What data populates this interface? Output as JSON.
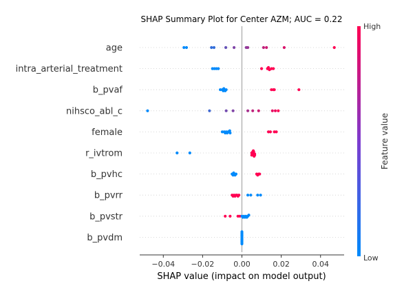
{
  "chart_data": {
    "type": "scatter",
    "title": "SHAP Summary Plot for Center AZM; AUC = 0.22",
    "xlabel": "SHAP value (impact on model output)",
    "xlim": [
      -0.052,
      0.052
    ],
    "xticks": [
      -0.04,
      -0.02,
      0.0,
      0.02,
      0.04
    ],
    "xtick_labels": [
      "−0.04",
      "−0.02",
      "0.00",
      "0.02",
      "0.04"
    ],
    "colorbar": {
      "title": "Feature value",
      "high_label": "High",
      "low_label": "Low",
      "low_color": "#008afb",
      "high_color": "#ff0052"
    },
    "colors": {
      "zero_line": "#999999",
      "grid": "#cccccc",
      "axis": "#333333"
    },
    "features": [
      {
        "name": "age",
        "points": [
          [
            -0.0295,
            0.0
          ],
          [
            -0.0282,
            0.0
          ],
          [
            -0.0155,
            0.2
          ],
          [
            -0.0142,
            0.2
          ],
          [
            -0.0082,
            0.4
          ],
          [
            -0.004,
            0.5
          ],
          [
            0.0022,
            0.55
          ],
          [
            0.003,
            0.6
          ],
          [
            0.011,
            0.75
          ],
          [
            0.0125,
            0.8
          ],
          [
            0.0215,
            0.85
          ],
          [
            0.047,
            1.0
          ]
        ]
      },
      {
        "name": "intra_arterial_treatment",
        "points": [
          [
            -0.015,
            0.0
          ],
          [
            -0.014,
            0.0
          ],
          [
            -0.013,
            0.0
          ],
          [
            -0.012,
            0.0
          ],
          [
            0.01,
            1.0
          ],
          [
            0.013,
            1.0
          ],
          [
            0.014,
            1.0
          ],
          [
            0.015,
            1.0
          ],
          [
            0.016,
            1.0
          ],
          [
            0.0135,
            1.0
          ]
        ]
      },
      {
        "name": "b_pvaf",
        "points": [
          [
            -0.011,
            0.0
          ],
          [
            -0.01,
            0.0
          ],
          [
            -0.0095,
            0.0
          ],
          [
            -0.009,
            0.0
          ],
          [
            -0.0085,
            0.0
          ],
          [
            -0.008,
            0.0
          ],
          [
            -0.0092,
            0.0
          ],
          [
            0.015,
            1.0
          ],
          [
            0.016,
            1.0
          ],
          [
            0.0165,
            1.0
          ],
          [
            0.029,
            1.0
          ]
        ]
      },
      {
        "name": "nihsco_abl_c",
        "points": [
          [
            -0.048,
            0.0
          ],
          [
            -0.0165,
            0.25
          ],
          [
            -0.008,
            0.45
          ],
          [
            -0.0045,
            0.5
          ],
          [
            0.003,
            0.65
          ],
          [
            0.0055,
            0.75
          ],
          [
            0.0085,
            0.8
          ],
          [
            0.0155,
            0.9
          ],
          [
            0.017,
            0.92
          ],
          [
            0.0185,
            1.0
          ]
        ]
      },
      {
        "name": "female",
        "points": [
          [
            -0.01,
            0.0
          ],
          [
            -0.009,
            0.0
          ],
          [
            -0.008,
            0.0
          ],
          [
            -0.007,
            0.0
          ],
          [
            -0.006,
            0.0
          ],
          [
            -0.0085,
            0.0
          ],
          [
            -0.0075,
            0.0
          ],
          [
            -0.0062,
            0.0
          ],
          [
            0.0135,
            1.0
          ],
          [
            0.0145,
            1.0
          ],
          [
            0.0165,
            1.0
          ],
          [
            0.0175,
            1.0
          ]
        ]
      },
      {
        "name": "r_ivtrom",
        "points": [
          [
            -0.033,
            0.0
          ],
          [
            -0.0265,
            0.0
          ],
          [
            0.005,
            1.0
          ],
          [
            0.0055,
            1.0
          ],
          [
            0.006,
            1.0
          ],
          [
            0.0065,
            1.0
          ],
          [
            0.0055,
            1.0
          ],
          [
            0.006,
            1.0
          ],
          [
            0.005,
            1.0
          ],
          [
            0.0065,
            1.0
          ],
          [
            0.0058,
            1.0
          ],
          [
            0.0062,
            1.0
          ]
        ]
      },
      {
        "name": "b_pvhc",
        "points": [
          [
            -0.005,
            0.0
          ],
          [
            -0.004,
            0.0
          ],
          [
            -0.003,
            0.0
          ],
          [
            -0.0045,
            0.0
          ],
          [
            -0.0035,
            0.0
          ],
          [
            -0.0042,
            0.0
          ],
          [
            0.0075,
            1.0
          ],
          [
            0.0085,
            1.0
          ],
          [
            0.009,
            1.0
          ],
          [
            0.008,
            1.0
          ]
        ]
      },
      {
        "name": "b_pvrr",
        "points": [
          [
            -0.005,
            1.0
          ],
          [
            -0.004,
            1.0
          ],
          [
            -0.003,
            1.0
          ],
          [
            -0.0025,
            1.0
          ],
          [
            -0.0045,
            1.0
          ],
          [
            -0.002,
            1.0
          ],
          [
            -0.0015,
            1.0
          ],
          [
            -0.0035,
            1.0
          ],
          [
            0.003,
            0.0
          ],
          [
            0.0045,
            0.0
          ],
          [
            0.008,
            0.0
          ],
          [
            0.0095,
            0.0
          ]
        ]
      },
      {
        "name": "b_pvstr",
        "points": [
          [
            -0.0085,
            1.0
          ],
          [
            -0.006,
            1.0
          ],
          [
            -0.002,
            1.0
          ],
          [
            -0.001,
            1.0
          ],
          [
            0.0,
            0.0
          ],
          [
            0.001,
            0.0
          ],
          [
            0.002,
            0.0
          ],
          [
            0.003,
            0.0
          ],
          [
            0.0005,
            0.0
          ],
          [
            0.0015,
            0.0
          ],
          [
            0.0025,
            0.0
          ],
          [
            0.0035,
            0.0
          ]
        ]
      },
      {
        "name": "b_pvdm",
        "points": [
          [
            0.0,
            0.0
          ],
          [
            0.0,
            0.0
          ],
          [
            0.0,
            0.0
          ],
          [
            0.0,
            0.0
          ],
          [
            0.0,
            0.0
          ],
          [
            0.0,
            0.0
          ],
          [
            0.0,
            0.0
          ],
          [
            0.0,
            0.0
          ],
          [
            0.0,
            0.0
          ],
          [
            0.0,
            0.0
          ],
          [
            0.0,
            0.0
          ],
          [
            0.0,
            0.0
          ]
        ]
      }
    ]
  }
}
